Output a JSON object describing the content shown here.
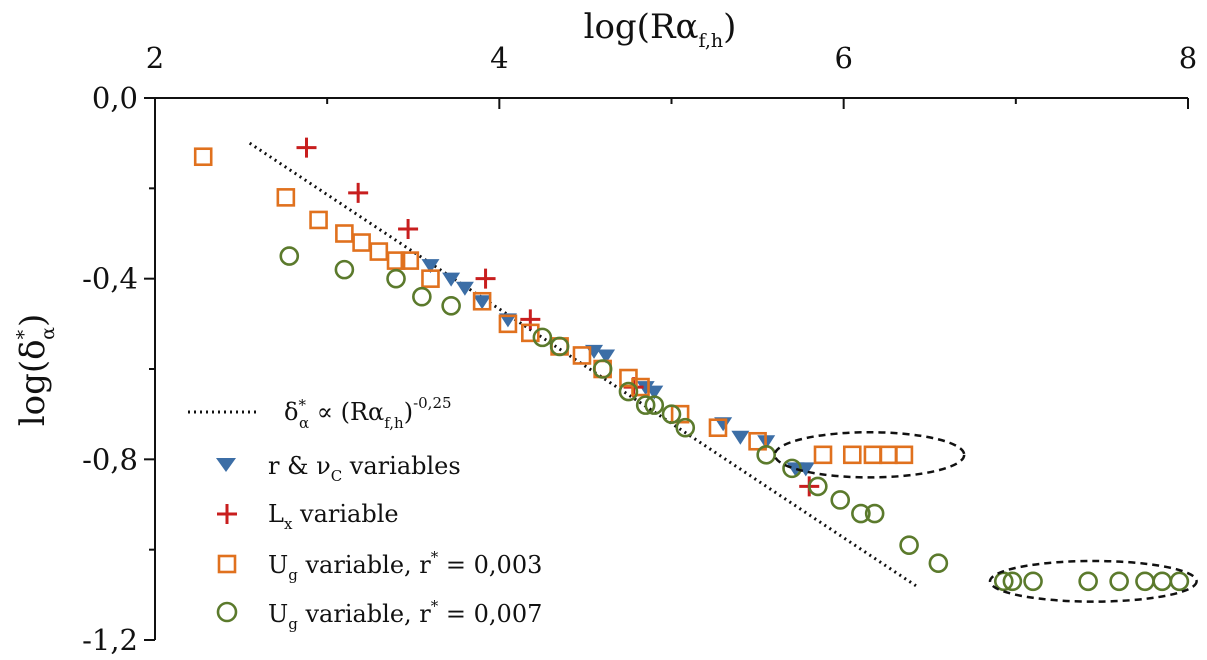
{
  "chart_data": {
    "type": "scatter",
    "x_axis": {
      "position": "top",
      "label_main": "log(Rα",
      "label_sub": "f,h",
      "label_end": ")",
      "range": [
        2,
        8
      ],
      "ticks": [
        "2",
        "4",
        "6",
        "8"
      ],
      "tick_values": [
        2,
        4,
        6,
        8
      ],
      "minor_tick_values": [
        3,
        5,
        7
      ]
    },
    "y_axis": {
      "label_main": "log(δ",
      "label_sup": "*",
      "label_sub": "α",
      "label_end": ")",
      "range": [
        -1.2,
        0.0
      ],
      "ticks": [
        "0,0",
        "-0,4",
        "-0,8",
        "-1,2"
      ],
      "tick_values": [
        0.0,
        -0.4,
        -0.8,
        -1.2
      ],
      "minor_tick_values": [
        -0.2,
        -0.6,
        -1.0
      ]
    },
    "fit_line": {
      "legend_main": "δ",
      "legend_sup": "*",
      "legend_sub": "α",
      "legend_mid": " ∝ (Rα",
      "legend_sub2": "f,h",
      "legend_end": ")",
      "legend_exp": "-0,25",
      "x": [
        2.55,
        6.42
      ],
      "y": [
        -0.1,
        -1.08
      ],
      "color": "#111111"
    },
    "series": [
      {
        "name_main": "r & ν",
        "name_sub": "C",
        "name_end": " variables",
        "marker": "triangle-down",
        "color": "#3c6ea6",
        "x": [
          3.6,
          3.72,
          3.8,
          3.9,
          4.05,
          4.55,
          4.62,
          4.85,
          4.9,
          5.3,
          5.4,
          5.55,
          5.72,
          5.78
        ],
        "y": [
          -0.37,
          -0.4,
          -0.42,
          -0.45,
          -0.49,
          -0.56,
          -0.57,
          -0.64,
          -0.65,
          -0.72,
          -0.75,
          -0.76,
          -0.82,
          -0.82
        ]
      },
      {
        "name_main": "L",
        "name_sub": "x",
        "name_end": " variable",
        "marker": "plus",
        "color": "#c81e1e",
        "x": [
          2.88,
          3.18,
          3.47,
          3.92,
          4.18,
          4.78,
          5.8
        ],
        "y": [
          -0.11,
          -0.21,
          -0.29,
          -0.4,
          -0.49,
          -0.64,
          -0.86
        ]
      },
      {
        "name_main": "U",
        "name_sub": "g",
        "name_end": " variable, r",
        "name_sup": "*",
        "name_tail": " = 0,003",
        "marker": "square",
        "color": "#e0711e",
        "x": [
          2.28,
          2.76,
          2.95,
          3.1,
          3.2,
          3.3,
          3.4,
          3.48,
          3.6,
          3.9,
          4.05,
          4.18,
          4.35,
          4.48,
          4.6,
          4.75,
          4.82,
          5.05,
          5.27,
          5.5,
          5.88,
          6.05,
          6.17,
          6.26,
          6.35
        ],
        "y": [
          -0.13,
          -0.22,
          -0.27,
          -0.3,
          -0.32,
          -0.34,
          -0.36,
          -0.36,
          -0.4,
          -0.45,
          -0.5,
          -0.52,
          -0.55,
          -0.57,
          -0.6,
          -0.62,
          -0.64,
          -0.7,
          -0.73,
          -0.76,
          -0.79,
          -0.79,
          -0.79,
          -0.79,
          -0.79
        ]
      },
      {
        "name_main": "U",
        "name_sub": "g",
        "name_end": " variable, r",
        "name_sup": "*",
        "name_tail": " = 0,007",
        "marker": "circle",
        "color": "#5b7a2c",
        "x": [
          2.78,
          3.1,
          3.4,
          3.55,
          3.72,
          4.25,
          4.35,
          4.6,
          4.75,
          4.85,
          4.9,
          5.0,
          5.08,
          5.55,
          5.7,
          5.85,
          5.98,
          6.1,
          6.18,
          6.38,
          6.55,
          6.93,
          6.98,
          7.1,
          7.42,
          7.6,
          7.75,
          7.85,
          7.95
        ],
        "y": [
          -0.35,
          -0.38,
          -0.4,
          -0.44,
          -0.46,
          -0.53,
          -0.55,
          -0.6,
          -0.65,
          -0.68,
          -0.68,
          -0.7,
          -0.73,
          -0.79,
          -0.82,
          -0.86,
          -0.89,
          -0.92,
          -0.92,
          -0.99,
          -1.03,
          -1.07,
          -1.07,
          -1.07,
          -1.07,
          -1.07,
          -1.07,
          -1.07,
          -1.07
        ]
      }
    ],
    "annotations": [
      {
        "shape": "dashed-ellipse",
        "cx": 6.15,
        "cy": -0.79,
        "rx": 0.55,
        "ry": 0.05
      },
      {
        "shape": "dashed-ellipse",
        "cx": 7.45,
        "cy": -1.07,
        "rx": 0.6,
        "ry": 0.045
      }
    ],
    "legend": {
      "placement": "bottom-left"
    }
  }
}
